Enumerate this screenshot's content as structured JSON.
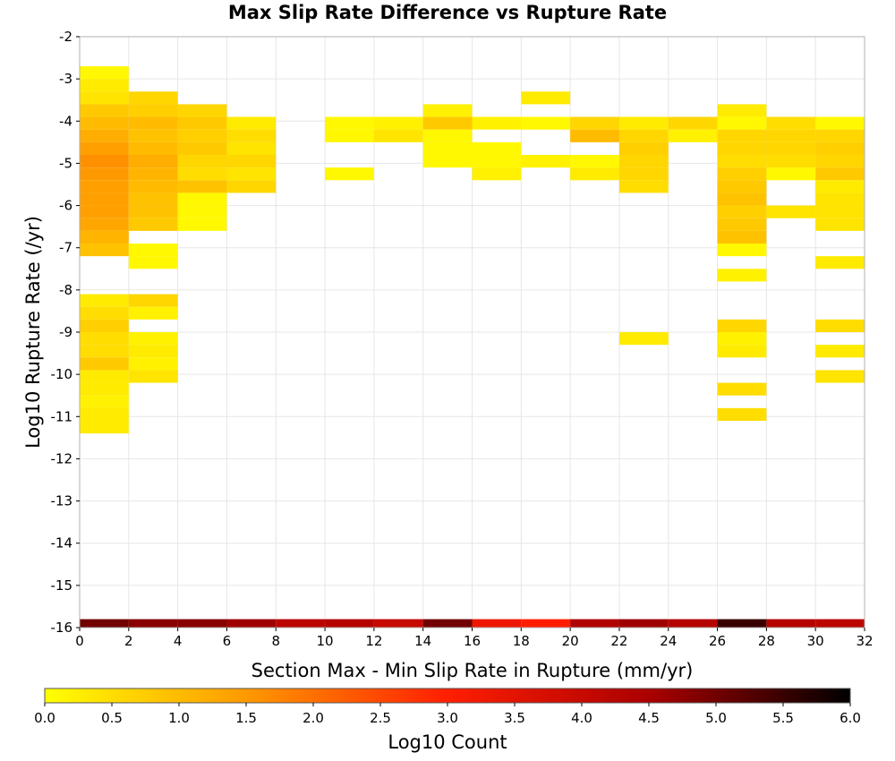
{
  "chart_data": {
    "type": "heatmap",
    "title": "Max Slip Rate Difference vs Rupture Rate",
    "xlabel": "Section Max - Min Slip Rate in Rupture (mm/yr)",
    "ylabel": "Log10 Rupture Rate (/yr)",
    "xlim": [
      0,
      32
    ],
    "ylim": [
      -16,
      -2
    ],
    "x_ticks": [
      0,
      2,
      4,
      6,
      8,
      10,
      12,
      14,
      16,
      18,
      20,
      22,
      24,
      26,
      28,
      30,
      32
    ],
    "y_ticks": [
      -2,
      -3,
      -4,
      -5,
      -6,
      -7,
      -8,
      -9,
      -10,
      -11,
      -12,
      -13,
      -14,
      -15,
      -16
    ],
    "bin_width_x": 2,
    "bin_height_y": 0.3,
    "grid": true,
    "colorbar": {
      "label": "Log10 Count",
      "min": 0.0,
      "max": 6.0,
      "ticks": [
        "0.0",
        "0.5",
        "1.0",
        "1.5",
        "2.0",
        "2.5",
        "3.0",
        "3.5",
        "4.0",
        "4.5",
        "5.0",
        "5.5",
        "6.0"
      ],
      "colors": [
        "#ffff00",
        "#ff9900",
        "#ff1e00",
        "#aa0000",
        "#000000"
      ]
    },
    "cells": [
      {
        "x": 1,
        "values": [
          [
            -2.85,
            0.1
          ],
          [
            -3.15,
            0.3
          ],
          [
            -3.45,
            0.4
          ],
          [
            -3.75,
            0.8
          ],
          [
            -4.05,
            1.0
          ],
          [
            -4.35,
            1.2
          ],
          [
            -4.65,
            1.4
          ],
          [
            -4.95,
            1.6
          ],
          [
            -5.25,
            1.5
          ],
          [
            -5.55,
            1.4
          ],
          [
            -5.85,
            1.4
          ],
          [
            -6.15,
            1.4
          ],
          [
            -6.45,
            1.3
          ],
          [
            -6.75,
            1.1
          ],
          [
            -7.05,
            0.9
          ],
          [
            -8.25,
            0.3
          ],
          [
            -8.55,
            0.5
          ],
          [
            -8.85,
            0.7
          ],
          [
            -9.15,
            0.5
          ],
          [
            -9.45,
            0.5
          ],
          [
            -9.75,
            0.8
          ],
          [
            -10.05,
            0.3
          ],
          [
            -10.35,
            0.3
          ],
          [
            -10.65,
            0.2
          ],
          [
            -10.95,
            0.3
          ],
          [
            -11.25,
            0.3
          ],
          [
            -15.95,
            5.0
          ]
        ]
      },
      {
        "x": 3,
        "values": [
          [
            -3.45,
            0.6
          ],
          [
            -3.75,
            0.7
          ],
          [
            -4.05,
            1.0
          ],
          [
            -4.35,
            0.9
          ],
          [
            -4.65,
            1.0
          ],
          [
            -4.95,
            1.2
          ],
          [
            -5.25,
            1.1
          ],
          [
            -5.55,
            1.0
          ],
          [
            -5.85,
            0.9
          ],
          [
            -6.15,
            0.9
          ],
          [
            -6.45,
            0.8
          ],
          [
            -7.05,
            0.1
          ],
          [
            -7.35,
            0.1
          ],
          [
            -8.25,
            0.6
          ],
          [
            -8.55,
            0.2
          ],
          [
            -9.15,
            0.2
          ],
          [
            -9.45,
            0.3
          ],
          [
            -9.75,
            0.2
          ],
          [
            -10.05,
            0.4
          ],
          [
            -15.95,
            4.8
          ]
        ]
      },
      {
        "x": 5,
        "values": [
          [
            -3.75,
            0.6
          ],
          [
            -4.05,
            0.8
          ],
          [
            -4.35,
            0.7
          ],
          [
            -4.65,
            0.8
          ],
          [
            -4.95,
            0.6
          ],
          [
            -5.25,
            0.5
          ],
          [
            -5.55,
            0.9
          ],
          [
            -5.85,
            0.1
          ],
          [
            -6.15,
            0.1
          ],
          [
            -6.45,
            0.1
          ],
          [
            -15.95,
            4.8
          ]
        ]
      },
      {
        "x": 7,
        "values": [
          [
            -4.05,
            0.3
          ],
          [
            -4.35,
            0.5
          ],
          [
            -4.65,
            0.4
          ],
          [
            -4.95,
            0.6
          ],
          [
            -5.25,
            0.4
          ],
          [
            -5.55,
            0.6
          ],
          [
            -15.95,
            4.6
          ]
        ]
      },
      {
        "x": 9,
        "values": [
          [
            -15.95,
            4.2
          ]
        ]
      },
      {
        "x": 11,
        "values": [
          [
            -4.05,
            0.1
          ],
          [
            -4.35,
            0.1
          ],
          [
            -5.25,
            0.1
          ],
          [
            -15.95,
            4.3
          ]
        ]
      },
      {
        "x": 13,
        "values": [
          [
            -4.05,
            0.2
          ],
          [
            -4.35,
            0.4
          ],
          [
            -15.95,
            4.0
          ]
        ]
      },
      {
        "x": 15,
        "values": [
          [
            -3.75,
            0.2
          ],
          [
            -4.05,
            0.8
          ],
          [
            -4.35,
            0.1
          ],
          [
            -4.65,
            0.1
          ],
          [
            -4.95,
            0.1
          ],
          [
            -15.95,
            5.0
          ]
        ]
      },
      {
        "x": 17,
        "values": [
          [
            -4.05,
            0.2
          ],
          [
            -4.65,
            0.1
          ],
          [
            -4.95,
            0.1
          ],
          [
            -5.25,
            0.2
          ],
          [
            -15.95,
            3.3
          ]
        ]
      },
      {
        "x": 19,
        "values": [
          [
            -3.45,
            0.3
          ],
          [
            -4.05,
            0.1
          ],
          [
            -4.95,
            0.2
          ],
          [
            -15.95,
            3.0
          ]
        ]
      },
      {
        "x": 21,
        "values": [
          [
            -4.05,
            0.6
          ],
          [
            -4.35,
            1.0
          ],
          [
            -4.95,
            0.1
          ],
          [
            -5.25,
            0.3
          ],
          [
            -15.95,
            4.4
          ]
        ]
      },
      {
        "x": 23,
        "values": [
          [
            -4.05,
            0.3
          ],
          [
            -4.35,
            0.6
          ],
          [
            -4.65,
            0.7
          ],
          [
            -4.95,
            0.6
          ],
          [
            -5.25,
            0.6
          ],
          [
            -5.55,
            0.5
          ],
          [
            -9.15,
            0.3
          ],
          [
            -15.95,
            4.6
          ]
        ]
      },
      {
        "x": 25,
        "values": [
          [
            -4.05,
            0.6
          ],
          [
            -4.35,
            0.2
          ],
          [
            -15.95,
            4.3
          ]
        ]
      },
      {
        "x": 27,
        "values": [
          [
            -3.75,
            0.3
          ],
          [
            -4.05,
            0.1
          ],
          [
            -4.35,
            0.6
          ],
          [
            -4.65,
            0.6
          ],
          [
            -4.95,
            0.5
          ],
          [
            -5.25,
            0.7
          ],
          [
            -5.55,
            0.8
          ],
          [
            -5.85,
            0.9
          ],
          [
            -6.15,
            0.7
          ],
          [
            -6.45,
            0.8
          ],
          [
            -6.75,
            0.9
          ],
          [
            -7.05,
            0.1
          ],
          [
            -7.65,
            0.2
          ],
          [
            -8.85,
            0.6
          ],
          [
            -9.15,
            0.2
          ],
          [
            -9.45,
            0.3
          ],
          [
            -10.35,
            0.5
          ],
          [
            -10.95,
            0.5
          ],
          [
            -15.95,
            5.5
          ]
        ]
      },
      {
        "x": 29,
        "values": [
          [
            -4.05,
            0.5
          ],
          [
            -4.35,
            0.6
          ],
          [
            -4.65,
            0.6
          ],
          [
            -4.95,
            0.5
          ],
          [
            -5.25,
            0.1
          ],
          [
            -6.15,
            0.4
          ],
          [
            -15.95,
            4.3
          ]
        ]
      },
      {
        "x": 31,
        "values": [
          [
            -4.05,
            0.1
          ],
          [
            -4.35,
            0.6
          ],
          [
            -4.65,
            0.7
          ],
          [
            -4.95,
            0.6
          ],
          [
            -5.25,
            0.8
          ],
          [
            -5.55,
            0.3
          ],
          [
            -5.85,
            0.4
          ],
          [
            -6.15,
            0.4
          ],
          [
            -6.45,
            0.4
          ],
          [
            -7.35,
            0.3
          ],
          [
            -8.85,
            0.5
          ],
          [
            -9.45,
            0.3
          ],
          [
            -10.05,
            0.4
          ],
          [
            -15.95,
            4.2
          ]
        ]
      }
    ]
  }
}
